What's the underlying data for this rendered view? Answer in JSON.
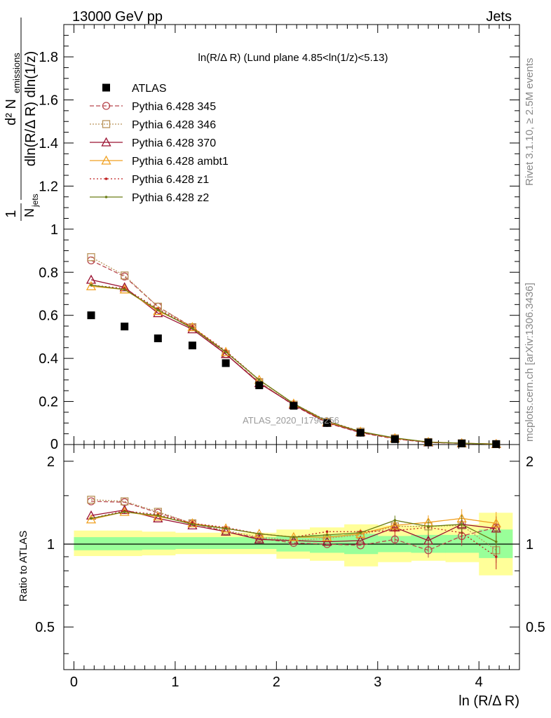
{
  "header": {
    "left": "13000 GeV pp",
    "right": "Jets"
  },
  "side_labels": {
    "rivet": "Rivet 3.1.10, ≥ 2.5M events",
    "mcplots": "mcplots.cern.ch [arXiv:1306.3436]"
  },
  "watermark": "ATLAS_2020_I1790256",
  "colors": {
    "ATLAS": "#000000",
    "p345": "#b8474e",
    "p346": "#b9935a",
    "p370": "#9a1030",
    "ambt1": "#f0a020",
    "z1": "#c02020",
    "z2": "#6b7d16",
    "band_inner": "#99ff99",
    "band_outer": "#ffff99"
  },
  "chart_data": {
    "type": "line",
    "title": "ln(R/Δ R) (Lund plane 4.85<ln(1/z)<5.13)",
    "xlabel": "ln (R/Δ R)",
    "ylabel": "1/N_jets d²N_emissions / dln(R/Δ R) dln(1/z)",
    "ratio_ylabel": "Ratio to ATLAS",
    "xlim": [
      -0.1,
      4.4
    ],
    "ylim": [
      0,
      1.95
    ],
    "ratio_ylim": [
      0.35,
      2.3
    ],
    "ratio_log": true,
    "x": [
      0.17,
      0.5,
      0.83,
      1.17,
      1.5,
      1.83,
      2.17,
      2.5,
      2.83,
      3.17,
      3.5,
      3.83,
      4.17
    ],
    "x_edges": [
      0.0,
      0.33,
      0.67,
      1.0,
      1.33,
      1.67,
      2.0,
      2.33,
      2.67,
      3.0,
      3.33,
      3.67,
      4.0,
      4.33
    ],
    "xticks": [
      0,
      1,
      2,
      3,
      4
    ],
    "yticks": [
      0.2,
      0.4,
      0.6,
      0.8,
      1,
      1.2,
      1.4,
      1.6,
      1.8
    ],
    "ytick_labels_extra": [
      "0"
    ],
    "ratio_yticks": [
      0.5,
      1,
      2
    ],
    "legend": {
      "placement": "top-left",
      "entries": [
        "ATLAS",
        "Pythia 6.428 345",
        "Pythia 6.428 346",
        "Pythia 6.428 370",
        "Pythia 6.428 ambt1",
        "Pythia 6.428 z1",
        "Pythia 6.428 z2"
      ]
    },
    "data": {
      "name": "ATLAS",
      "values": [
        0.6,
        0.548,
        0.493,
        0.46,
        0.378,
        0.275,
        0.18,
        0.1,
        0.055,
        0.025,
        0.01,
        0.005,
        0.002
      ],
      "band_inner": [
        [
          0.95,
          1.06
        ],
        [
          0.95,
          1.06
        ],
        [
          0.955,
          1.06
        ],
        [
          0.96,
          1.06
        ],
        [
          0.96,
          1.06
        ],
        [
          0.96,
          1.06
        ],
        [
          0.94,
          1.07
        ],
        [
          0.93,
          1.08
        ],
        [
          0.92,
          1.09
        ],
        [
          0.935,
          1.07
        ],
        [
          0.93,
          1.08
        ],
        [
          0.93,
          1.08
        ],
        [
          0.89,
          1.13
        ]
      ],
      "band_outer": [
        [
          0.905,
          1.12
        ],
        [
          0.905,
          1.12
        ],
        [
          0.91,
          1.11
        ],
        [
          0.92,
          1.1
        ],
        [
          0.92,
          1.1
        ],
        [
          0.92,
          1.1
        ],
        [
          0.885,
          1.13
        ],
        [
          0.87,
          1.15
        ],
        [
          0.83,
          1.18
        ],
        [
          0.86,
          1.17
        ],
        [
          0.87,
          1.17
        ],
        [
          0.86,
          1.18
        ],
        [
          0.77,
          1.3
        ]
      ]
    },
    "series": [
      {
        "name": "Pythia 6.428 345",
        "key": "p345",
        "marker": "circle",
        "dash": "6,3",
        "values": [
          0.855,
          0.78,
          0.64,
          0.545,
          0.42,
          0.29,
          0.182,
          0.1,
          0.055,
          0.026,
          0.0095,
          0.0055,
          0.0023
        ],
        "ratio": [
          1.43,
          1.42,
          1.3,
          1.19,
          1.11,
          1.05,
          1.01,
          1.0,
          0.99,
          1.04,
          0.95,
          1.07,
          1.15
        ]
      },
      {
        "name": "Pythia 6.428 346",
        "key": "p346",
        "marker": "square",
        "dash": "2,2",
        "values": [
          0.87,
          0.785,
          0.64,
          0.545,
          0.42,
          0.29,
          0.185,
          0.105,
          0.06,
          0.029,
          0.0116,
          0.0058,
          0.0019
        ],
        "ratio": [
          1.45,
          1.43,
          1.31,
          1.19,
          1.12,
          1.06,
          1.03,
          1.05,
          1.08,
          1.16,
          1.16,
          1.17,
          0.95
        ]
      },
      {
        "name": "Pythia 6.428 370",
        "key": "p370",
        "marker": "triangle",
        "dash": "",
        "values": [
          0.765,
          0.73,
          0.61,
          0.535,
          0.42,
          0.285,
          0.185,
          0.102,
          0.057,
          0.029,
          0.0103,
          0.0059,
          0.0023
        ],
        "ratio": [
          1.27,
          1.33,
          1.24,
          1.17,
          1.11,
          1.04,
          1.03,
          1.02,
          1.03,
          1.15,
          1.03,
          1.18,
          1.14
        ]
      },
      {
        "name": "Pythia 6.428 ambt1",
        "key": "ambt1",
        "marker": "triangle",
        "dash": "",
        "values": [
          0.735,
          0.72,
          0.62,
          0.545,
          0.43,
          0.3,
          0.19,
          0.105,
          0.06,
          0.029,
          0.012,
          0.0062,
          0.0024
        ],
        "ratio": [
          1.23,
          1.31,
          1.26,
          1.19,
          1.14,
          1.09,
          1.06,
          1.06,
          1.09,
          1.17,
          1.2,
          1.24,
          1.19
        ]
      },
      {
        "name": "Pythia 6.428 z1",
        "key": "z1",
        "marker": "dot",
        "dash": "2,3",
        "values": [
          0.74,
          0.725,
          0.63,
          0.545,
          0.435,
          0.3,
          0.19,
          0.11,
          0.061,
          0.028,
          0.0115,
          0.0055,
          0.0018
        ],
        "ratio": [
          1.24,
          1.32,
          1.28,
          1.19,
          1.15,
          1.09,
          1.06,
          1.11,
          1.11,
          1.12,
          1.15,
          1.1,
          0.9
        ]
      },
      {
        "name": "Pythia 6.428 z2",
        "key": "z2",
        "marker": "dot",
        "dash": "",
        "values": [
          0.74,
          0.72,
          0.625,
          0.54,
          0.43,
          0.3,
          0.19,
          0.108,
          0.06,
          0.031,
          0.0115,
          0.006,
          0.0021
        ],
        "ratio": [
          1.24,
          1.31,
          1.27,
          1.18,
          1.14,
          1.09,
          1.06,
          1.08,
          1.1,
          1.22,
          1.16,
          1.18,
          1.02
        ]
      }
    ]
  }
}
